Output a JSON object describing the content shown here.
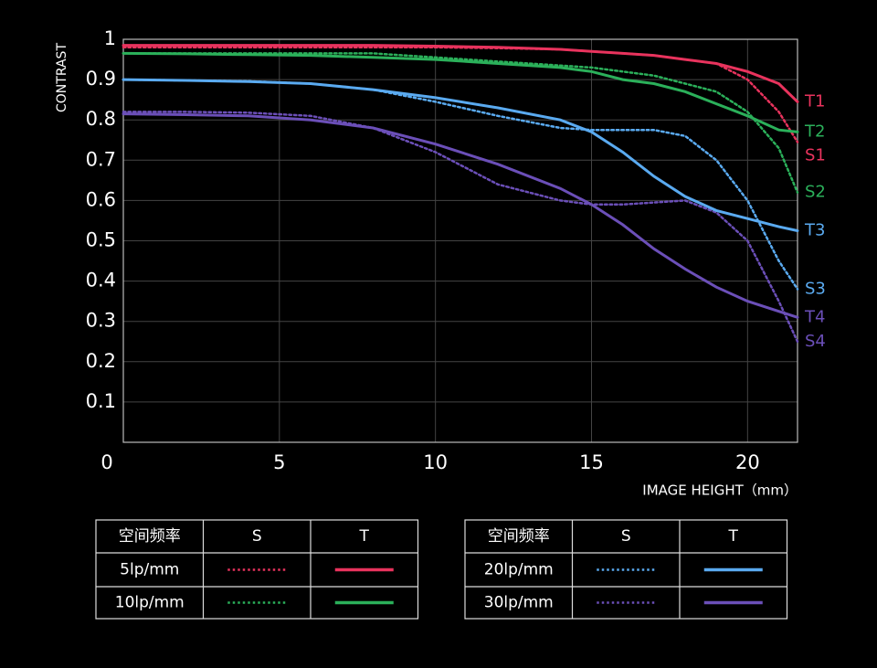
{
  "chart_data": {
    "type": "line",
    "y_label": "CONTRAST",
    "x_label": "IMAGE HEIGHT（mm）",
    "x": [
      0,
      2,
      4,
      6,
      8,
      10,
      12,
      14,
      15,
      16,
      17,
      18,
      19,
      20,
      21,
      21.6
    ],
    "xlim": [
      0,
      21.6
    ],
    "xticks": [
      0,
      5,
      10,
      15,
      20
    ],
    "ylim": [
      0,
      1
    ],
    "yticks": [
      0.1,
      0.2,
      0.3,
      0.4,
      0.5,
      0.6,
      0.7,
      0.8,
      0.9,
      1
    ],
    "grid": true,
    "series": [
      {
        "name": "S1",
        "color": "#e8335d",
        "style": "dotted",
        "values": [
          0.98,
          0.98,
          0.98,
          0.98,
          0.98,
          0.98,
          0.978,
          0.975,
          0.97,
          0.965,
          0.96,
          0.95,
          0.94,
          0.9,
          0.82,
          0.745
        ]
      },
      {
        "name": "S2",
        "color": "#2bb05a",
        "style": "dotted",
        "values": [
          0.965,
          0.965,
          0.965,
          0.965,
          0.965,
          0.955,
          0.945,
          0.935,
          0.93,
          0.92,
          0.91,
          0.89,
          0.87,
          0.82,
          0.73,
          0.62
        ]
      },
      {
        "name": "S3",
        "color": "#5aaaf0",
        "style": "dotted",
        "values": [
          0.9,
          0.898,
          0.896,
          0.89,
          0.875,
          0.845,
          0.81,
          0.78,
          0.775,
          0.775,
          0.775,
          0.76,
          0.7,
          0.6,
          0.45,
          0.38
        ]
      },
      {
        "name": "S4",
        "color": "#6b4fb8",
        "style": "dotted",
        "values": [
          0.82,
          0.82,
          0.818,
          0.81,
          0.78,
          0.72,
          0.64,
          0.6,
          0.59,
          0.59,
          0.595,
          0.6,
          0.57,
          0.5,
          0.35,
          0.25
        ]
      },
      {
        "name": "T1",
        "color": "#e8335d",
        "style": "solid",
        "values": [
          0.985,
          0.985,
          0.985,
          0.985,
          0.985,
          0.983,
          0.98,
          0.975,
          0.97,
          0.965,
          0.96,
          0.95,
          0.94,
          0.92,
          0.89,
          0.845
        ]
      },
      {
        "name": "T2",
        "color": "#2bb05a",
        "style": "solid",
        "values": [
          0.965,
          0.964,
          0.962,
          0.96,
          0.955,
          0.95,
          0.94,
          0.93,
          0.92,
          0.9,
          0.89,
          0.87,
          0.84,
          0.81,
          0.775,
          0.77
        ]
      },
      {
        "name": "T3",
        "color": "#5aaaf0",
        "style": "solid",
        "values": [
          0.9,
          0.898,
          0.895,
          0.89,
          0.875,
          0.855,
          0.83,
          0.8,
          0.77,
          0.72,
          0.66,
          0.61,
          0.575,
          0.555,
          0.535,
          0.525
        ]
      },
      {
        "name": "T4",
        "color": "#6b4fb8",
        "style": "solid",
        "values": [
          0.815,
          0.813,
          0.81,
          0.8,
          0.78,
          0.74,
          0.69,
          0.63,
          0.59,
          0.54,
          0.48,
          0.43,
          0.385,
          0.35,
          0.325,
          0.31
        ]
      }
    ],
    "legend": {
      "header": "空间频率",
      "columns": [
        "S",
        "T"
      ],
      "rows": [
        "5lp/mm",
        "10lp/mm",
        "20lp/mm",
        "30lp/mm"
      ]
    }
  }
}
